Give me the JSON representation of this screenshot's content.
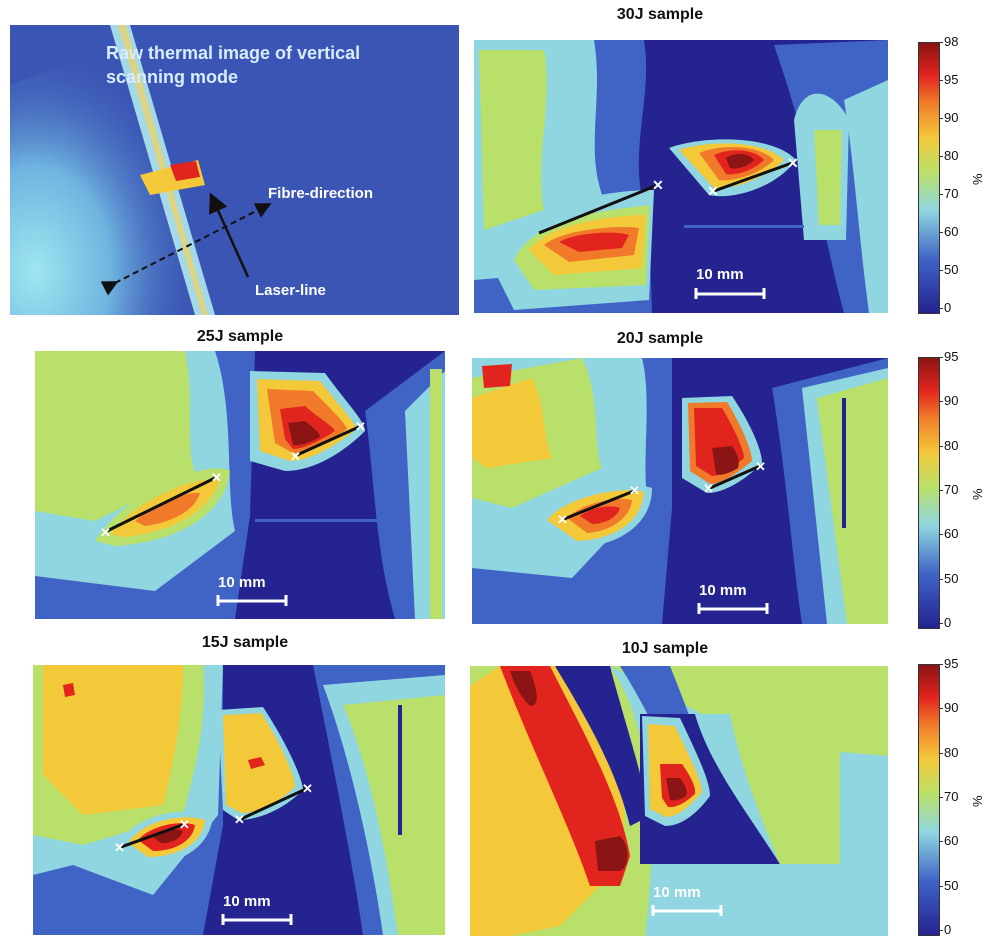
{
  "raw_panel": {
    "title_line1": "Raw thermal image of vertical",
    "title_line2": "scanning mode",
    "fibre_label": "Fibre-direction",
    "laser_label": "Laser-line"
  },
  "panels": [
    {
      "title": "30J sample",
      "scale": "10 mm"
    },
    {
      "title": "25J sample",
      "scale": "10 mm"
    },
    {
      "title": "20J sample",
      "scale": "10 mm"
    },
    {
      "title": "15J sample",
      "scale": "10 mm"
    },
    {
      "title": "10J sample",
      "scale": "10 mm"
    }
  ],
  "colorbars": [
    {
      "unit": "%",
      "ticks": [
        "98",
        "95",
        "90",
        "80",
        "70",
        "60",
        "50",
        "0"
      ]
    },
    {
      "unit": "%",
      "ticks": [
        "95",
        "90",
        "80",
        "70",
        "60",
        "50",
        "0"
      ]
    },
    {
      "unit": "%",
      "ticks": [
        "95",
        "90",
        "80",
        "70",
        "60",
        "50",
        "0"
      ]
    }
  ],
  "colors": {
    "dark_blue": "#24238f",
    "blue": "#3f64c6",
    "cyan": "#8fd6e0",
    "green": "#b9e06a",
    "yellow": "#f3c93a",
    "orange": "#f07a2a",
    "red": "#e2241e",
    "dark_red": "#8b1414"
  }
}
